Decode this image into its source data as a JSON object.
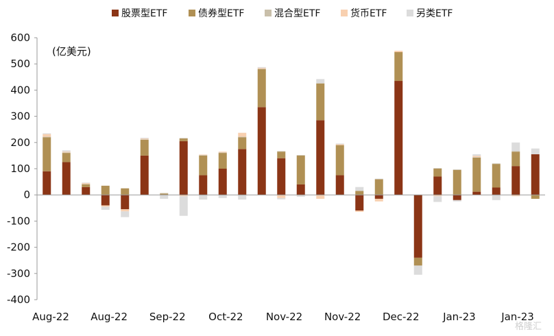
{
  "chart_data": {
    "type": "bar",
    "stacked": true,
    "unit_label": "(亿美元)",
    "ylim": [
      -400,
      600
    ],
    "yticks": [
      600,
      500,
      400,
      300,
      200,
      100,
      0,
      -100,
      -200,
      -300,
      -400
    ],
    "x_labels": [
      "Aug-22",
      "Aug-22",
      "Sep-22",
      "Oct-22",
      "Nov-22",
      "Nov-22",
      "Dec-22",
      "Jan-23",
      "Jan-23"
    ],
    "legend_position": "top",
    "grid": false,
    "series": [
      {
        "name": "股票型ETF",
        "color": "#8b3516",
        "values": [
          90,
          125,
          30,
          -40,
          -55,
          150,
          0,
          205,
          75,
          100,
          175,
          335,
          140,
          40,
          285,
          75,
          -60,
          -15,
          435,
          -240,
          70,
          -20,
          12,
          28,
          110,
          155
        ]
      },
      {
        "name": "债券型ETF",
        "color": "#b09054",
        "values": [
          130,
          35,
          10,
          35,
          25,
          60,
          5,
          10,
          75,
          60,
          45,
          145,
          25,
          110,
          140,
          115,
          15,
          60,
          110,
          -30,
          30,
          95,
          130,
          90,
          55,
          -15
        ]
      },
      {
        "name": "混合型ETF",
        "color": "#c9bfaa",
        "values": [
          2,
          2,
          2,
          0,
          0,
          2,
          2,
          2,
          2,
          2,
          2,
          2,
          2,
          2,
          2,
          0,
          0,
          0,
          0,
          0,
          2,
          2,
          2,
          2,
          2,
          0
        ]
      },
      {
        "name": "货币ETF",
        "color": "#f8d0b0",
        "values": [
          10,
          3,
          3,
          -5,
          -8,
          3,
          0,
          -5,
          2,
          3,
          15,
          3,
          -12,
          -2,
          -15,
          3,
          -5,
          -10,
          5,
          0,
          -5,
          0,
          5,
          0,
          -5,
          0
        ]
      },
      {
        "name": "另类ETF",
        "color": "#dcdcdc",
        "values": [
          3,
          5,
          2,
          -12,
          -22,
          3,
          -15,
          -75,
          -18,
          -12,
          -18,
          3,
          -5,
          -5,
          15,
          3,
          15,
          2,
          0,
          -35,
          -22,
          -5,
          6,
          -20,
          33,
          22
        ]
      }
    ]
  },
  "watermark": "格隆汇"
}
